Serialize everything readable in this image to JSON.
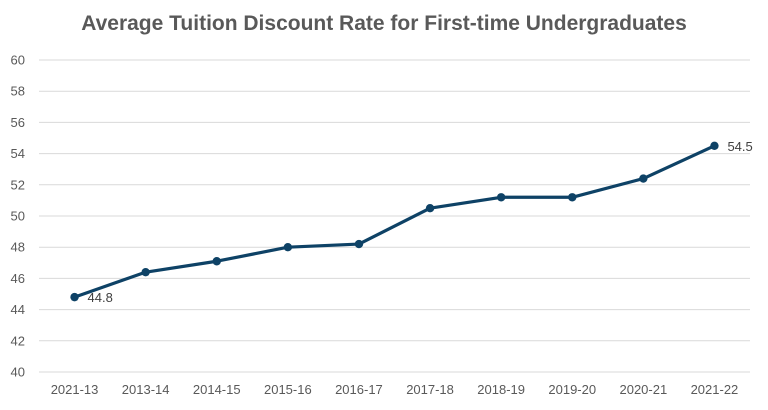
{
  "chart_data": {
    "type": "line",
    "title": "Average Tuition Discount Rate for First-time Undergraduates",
    "xlabel": "",
    "ylabel": "",
    "categories": [
      "2021-13",
      "2013-14",
      "2014-15",
      "2015-16",
      "2016-17",
      "2017-18",
      "2018-19",
      "2019-20",
      "2020-21",
      "2021-22"
    ],
    "series": [
      {
        "values": [
          44.8,
          46.4,
          47.1,
          48.0,
          48.2,
          50.5,
          51.2,
          51.2,
          52.4,
          54.5
        ]
      }
    ],
    "data_labels": [
      {
        "index": 0,
        "text": "44.8"
      },
      {
        "index": 9,
        "text": "54.5"
      }
    ],
    "ylim": [
      40,
      60
    ],
    "yticks": [
      40,
      42,
      44,
      46,
      48,
      50,
      52,
      54,
      56,
      58,
      60
    ],
    "grid": true,
    "legend": "none",
    "colors": {
      "line": "#0e4266",
      "grid": "#d9d9d9",
      "text": "#595959"
    }
  }
}
